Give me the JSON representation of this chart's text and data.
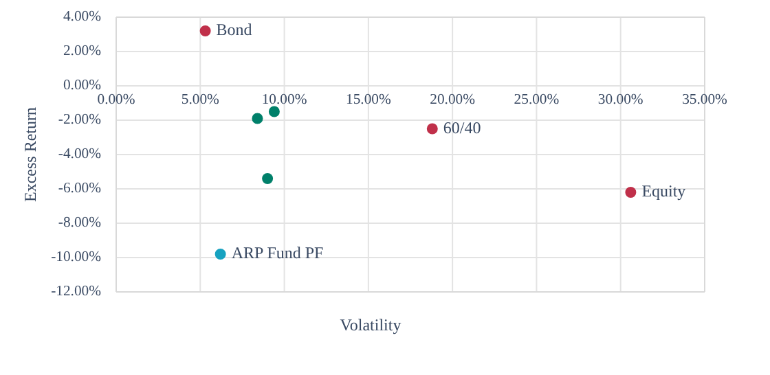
{
  "chart_data": {
    "type": "scatter",
    "xlabel": "Volatility",
    "ylabel": "Excess Return",
    "xlim": [
      0,
      35
    ],
    "ylim": [
      -12,
      4
    ],
    "xticks": [
      {
        "value": 0,
        "label": "0.00%"
      },
      {
        "value": 5,
        "label": "5.00%"
      },
      {
        "value": 10,
        "label": "10.00%"
      },
      {
        "value": 15,
        "label": "15.00%"
      },
      {
        "value": 20,
        "label": "20.00%"
      },
      {
        "value": 25,
        "label": "25.00%"
      },
      {
        "value": 30,
        "label": "30.00%"
      },
      {
        "value": 35,
        "label": "35.00%"
      }
    ],
    "yticks": [
      {
        "value": 4,
        "label": "4.00%"
      },
      {
        "value": 2,
        "label": "2.00%"
      },
      {
        "value": 0,
        "label": "0.00%"
      },
      {
        "value": -2,
        "label": "-2.00%"
      },
      {
        "value": -4,
        "label": "-4.00%"
      },
      {
        "value": -6,
        "label": "-6.00%"
      },
      {
        "value": -8,
        "label": "-8.00%"
      },
      {
        "value": -10,
        "label": "-10.00%"
      },
      {
        "value": -12,
        "label": "-12.00%"
      }
    ],
    "grid": true,
    "marker": "circle",
    "series": [
      {
        "name": "Bond",
        "color": "#c0304a",
        "x": [
          5.3
        ],
        "values": [
          3.2
        ]
      },
      {
        "color": "#00806a",
        "x": [
          9.4
        ],
        "values": [
          -1.5
        ]
      },
      {
        "color": "#00806a",
        "x": [
          8.4
        ],
        "values": [
          -1.9
        ]
      },
      {
        "name": "60/40",
        "color": "#c0304a",
        "x": [
          18.8
        ],
        "values": [
          -2.5
        ]
      },
      {
        "color": "#00806a",
        "x": [
          9.0
        ],
        "values": [
          -5.4
        ]
      },
      {
        "name": "Equity",
        "color": "#c0304a",
        "x": [
          30.6
        ],
        "values": [
          -6.2
        ]
      },
      {
        "name": "ARP Fund PF",
        "color": "#17a2c0",
        "x": [
          6.2
        ],
        "values": [
          -9.8
        ]
      }
    ]
  }
}
